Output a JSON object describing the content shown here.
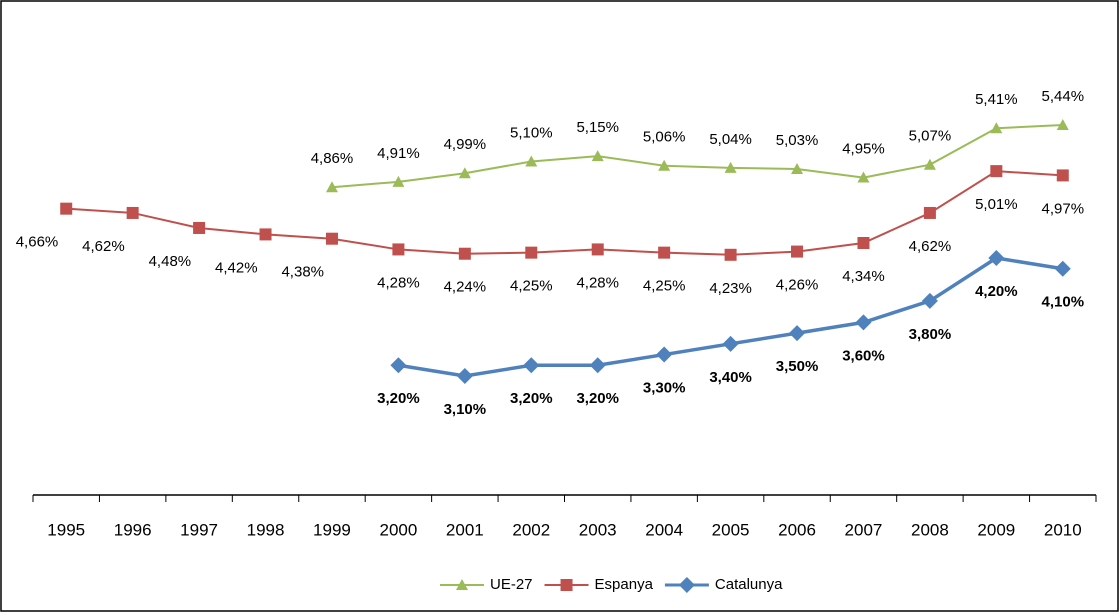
{
  "chart_data": {
    "type": "line",
    "categories": [
      "1995",
      "1996",
      "1997",
      "1998",
      "1999",
      "2000",
      "2001",
      "2002",
      "2003",
      "2004",
      "2005",
      "2006",
      "2007",
      "2008",
      "2009",
      "2010"
    ],
    "series": [
      {
        "name": "UE-27",
        "color": "#9BBB59",
        "marker": "triangle",
        "values": [
          null,
          null,
          null,
          null,
          4.86,
          4.91,
          4.99,
          5.1,
          5.15,
          5.06,
          5.04,
          5.03,
          4.95,
          5.07,
          5.41,
          5.44
        ],
        "value_labels": [
          null,
          null,
          null,
          null,
          "4,86%",
          "4,91%",
          "4,99%",
          "5,10%",
          "5,15%",
          "5,06%",
          "5,04%",
          "5,03%",
          "4,95%",
          "5,07%",
          "5,41%",
          "5,44%"
        ]
      },
      {
        "name": "Espanya",
        "color": "#C0504D",
        "marker": "square",
        "values": [
          4.66,
          4.62,
          4.48,
          4.42,
          4.38,
          4.28,
          4.24,
          4.25,
          4.28,
          4.25,
          4.23,
          4.26,
          4.34,
          4.62,
          5.01,
          4.97
        ],
        "value_labels": [
          "4,66%",
          "4,62%",
          "4,48%",
          "4,42%",
          "4,38%",
          "4,28%",
          "4,24%",
          "4,25%",
          "4,28%",
          "4,25%",
          "4,23%",
          "4,26%",
          "4,34%",
          "4,62%",
          "5,01%",
          "4,97%"
        ]
      },
      {
        "name": "Catalunya",
        "color": "#4F81BD",
        "marker": "diamond",
        "values": [
          null,
          null,
          null,
          null,
          null,
          3.2,
          3.1,
          3.2,
          3.2,
          3.3,
          3.4,
          3.5,
          3.6,
          3.8,
          4.2,
          4.1
        ],
        "value_labels": [
          null,
          null,
          null,
          null,
          null,
          "3,20%",
          "3,10%",
          "3,20%",
          "3,20%",
          "3,30%",
          "3,40%",
          "3,50%",
          "3,60%",
          "3,80%",
          "4,20%",
          "4,10%"
        ]
      }
    ],
    "legend": "bottom"
  }
}
